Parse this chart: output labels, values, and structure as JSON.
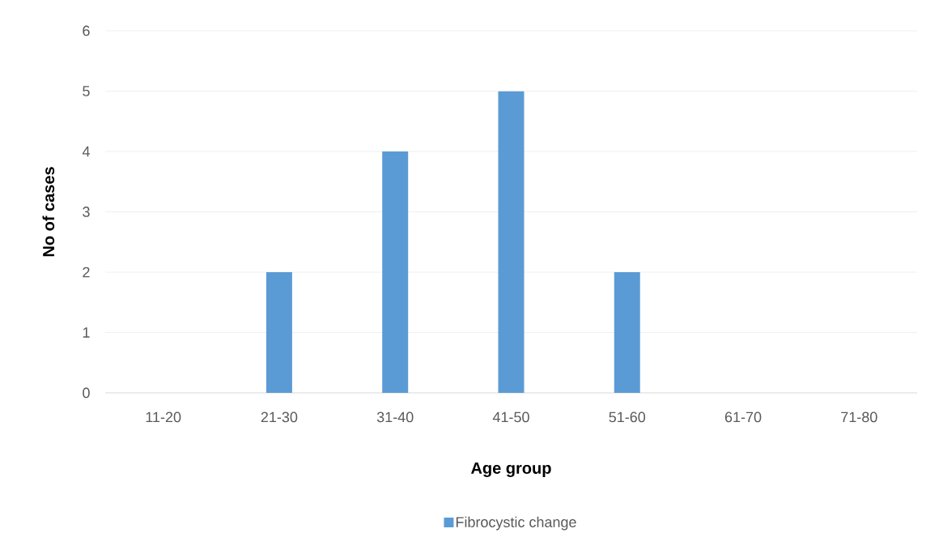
{
  "chart_data": {
    "type": "bar",
    "xlabel": "Age group",
    "ylabel": "No of cases",
    "categories": [
      "11-20",
      "21-30",
      "31-40",
      "41-50",
      "51-60",
      "61-70",
      "71-80"
    ],
    "series": [
      {
        "name": "Fibrocystic change",
        "color": "#5b9bd5",
        "values": [
          0,
          2,
          4,
          5,
          2,
          0,
          0
        ]
      }
    ],
    "ylim": [
      0,
      6
    ],
    "yticks": [
      0,
      1,
      2,
      3,
      4,
      5,
      6
    ],
    "grid": "y",
    "legend": "bottom"
  }
}
